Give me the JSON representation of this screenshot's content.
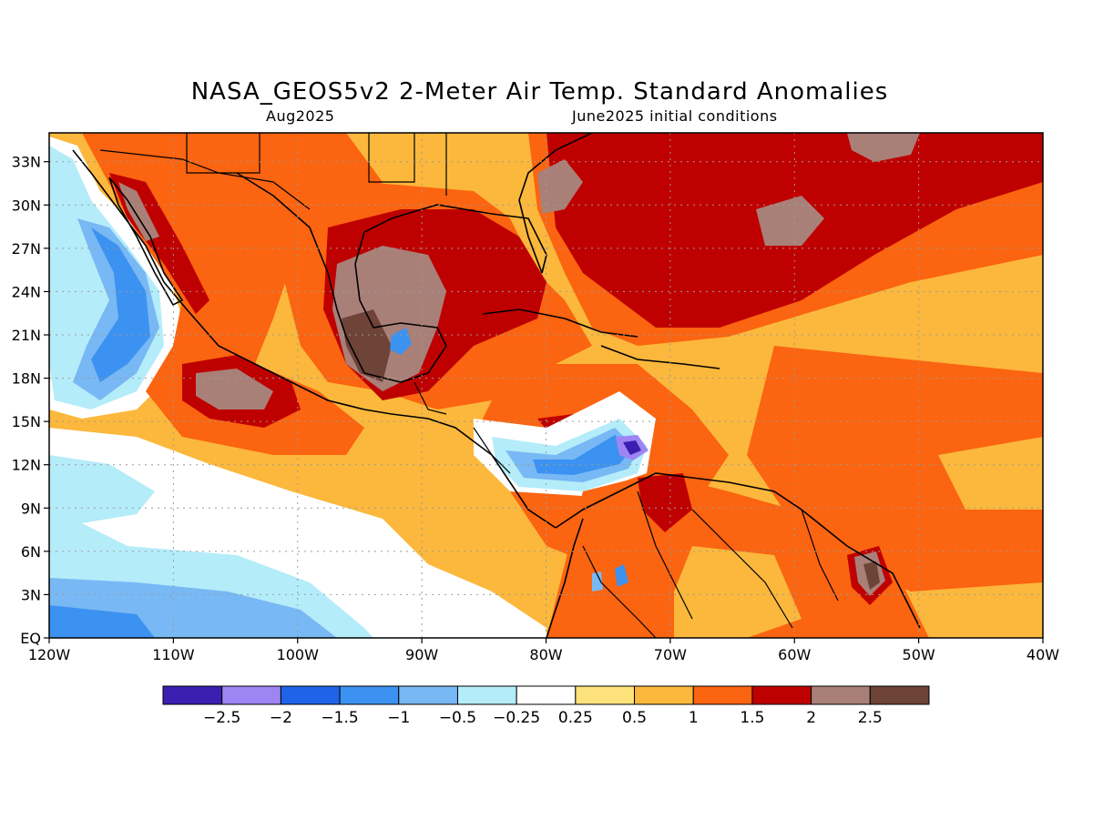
{
  "header": {
    "title": "NASA_GEOS5v2 2-Meter Air Temp. Standard Anomalies",
    "valid_month": "Aug2025",
    "init": "June2025 initial conditions"
  },
  "map": {
    "lon_range": [
      -120,
      -40
    ],
    "lat_range": [
      0,
      35
    ],
    "lat_ticks": [
      {
        "value": 33,
        "label": "33N"
      },
      {
        "value": 30,
        "label": "30N"
      },
      {
        "value": 27,
        "label": "27N"
      },
      {
        "value": 24,
        "label": "24N"
      },
      {
        "value": 21,
        "label": "21N"
      },
      {
        "value": 18,
        "label": "18N"
      },
      {
        "value": 15,
        "label": "15N"
      },
      {
        "value": 12,
        "label": "12N"
      },
      {
        "value": 9,
        "label": "9N"
      },
      {
        "value": 6,
        "label": "6N"
      },
      {
        "value": 3,
        "label": "3N"
      },
      {
        "value": 0,
        "label": "EQ"
      }
    ],
    "lon_ticks": [
      {
        "value": -120,
        "label": "120W"
      },
      {
        "value": -110,
        "label": "110W"
      },
      {
        "value": -100,
        "label": "100W"
      },
      {
        "value": -90,
        "label": "90W"
      },
      {
        "value": -80,
        "label": "80W"
      },
      {
        "value": -70,
        "label": "70W"
      },
      {
        "value": -60,
        "label": "60W"
      },
      {
        "value": -50,
        "label": "50W"
      },
      {
        "value": -40,
        "label": "40W"
      }
    ]
  },
  "colorbar": {
    "colors": [
      "#3b1fb0",
      "#9f85f4",
      "#1e64e8",
      "#3c92f0",
      "#78b8f4",
      "#b4ecfa",
      "#ffffff",
      "#fde27c",
      "#fbb83c",
      "#fb6410",
      "#bf0000",
      "#a98078",
      "#6e4338"
    ],
    "labels": [
      "-2.5",
      "-2",
      "-1.5",
      "-1",
      "-0.5",
      "-0.25",
      "0.25",
      "0.5",
      "1",
      "1.5",
      "2",
      "2.5"
    ]
  }
}
